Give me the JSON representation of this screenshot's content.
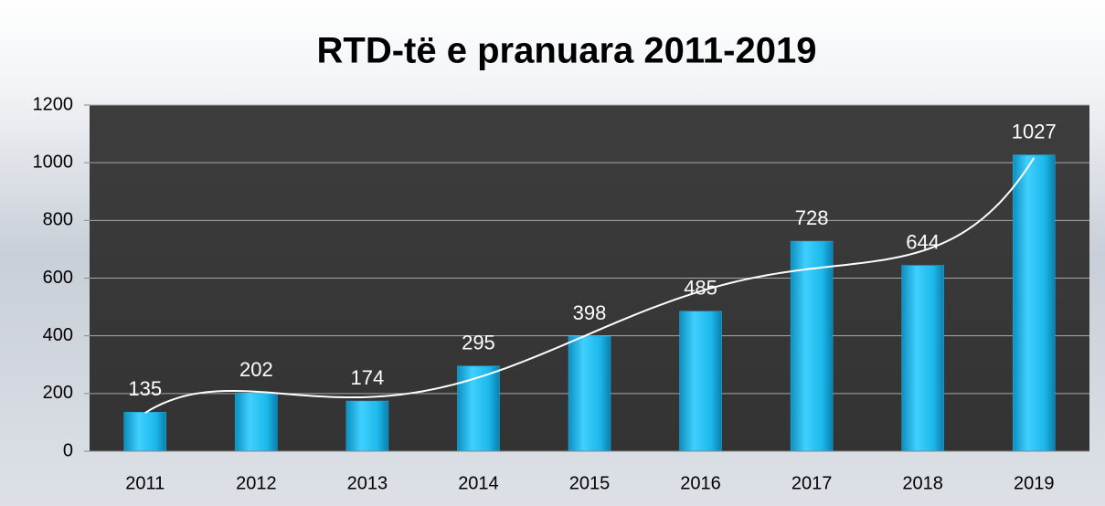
{
  "chart_data": {
    "type": "bar",
    "title": "RTD-të e pranuara 2011-2019",
    "categories": [
      "2011",
      "2012",
      "2013",
      "2014",
      "2015",
      "2016",
      "2017",
      "2018",
      "2019"
    ],
    "values": [
      135,
      202,
      174,
      295,
      398,
      485,
      728,
      644,
      1027
    ],
    "color": "#1cb8ea",
    "ylim": [
      0,
      1200
    ],
    "yticks": [
      0,
      200,
      400,
      600,
      800,
      1000,
      1200
    ],
    "grid": true,
    "trendline": true
  }
}
